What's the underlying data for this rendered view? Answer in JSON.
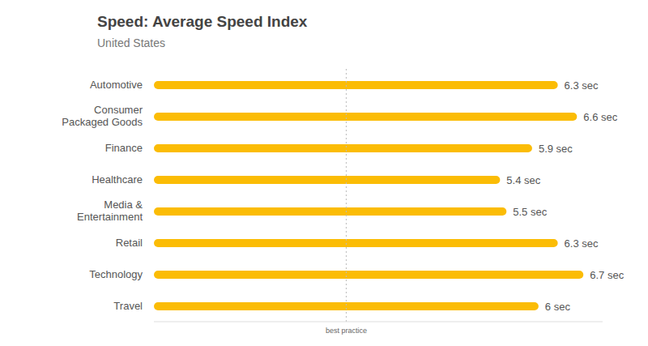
{
  "chart_data": {
    "type": "bar",
    "title": "Speed: Average Speed Index",
    "subtitle": "United States",
    "orientation": "horizontal",
    "categories": [
      "Automotive",
      "Consumer Packaged Goods",
      "Finance",
      "Healthcare",
      "Media & Entertainment",
      "Retail",
      "Technology",
      "Travel"
    ],
    "values": [
      6.3,
      6.6,
      5.9,
      5.4,
      5.5,
      6.3,
      6.7,
      6
    ],
    "value_labels": [
      "6.3 sec",
      "6.6 sec",
      "5.9 sec",
      "5.4 sec",
      "5.5 sec",
      "6.3 sec",
      "6.7 sec",
      "6 sec"
    ],
    "data_labels": true,
    "color": "#fbbc05",
    "xlim": [
      0,
      7
    ],
    "tick_labels": "y",
    "grid": false,
    "reference_lines": [
      {
        "x": 3,
        "label": "best practice"
      }
    ]
  }
}
